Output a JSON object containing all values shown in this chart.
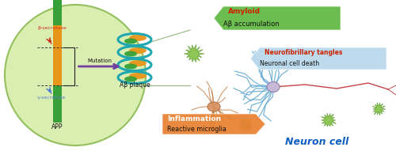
{
  "bg_color": "#ffffff",
  "ellipse_fc": "#d8edaa",
  "ellipse_ec": "#8aba50",
  "app_orange": "#e8961a",
  "app_green": "#38a038",
  "mutation_arrow": "#7040a0",
  "beta_color": "#cc3322",
  "gamma_color": "#5580cc",
  "plaque_teal": "#20a8b0",
  "plaque_green": "#38a038",
  "plaque_orange": "#e8961a",
  "amyloid_box": "#60b840",
  "amyloid_title": "Amyloid",
  "amyloid_title_color": "#cc2200",
  "amyloid_sub": "Aβ accumulation",
  "amyloid_sub_color": "#111111",
  "neuro_box": "#b8d8ec",
  "neuro_title": "Neurofibrillary tangles",
  "neuro_title_color": "#cc2200",
  "neuro_sub": "Neuronal cell death",
  "neuro_sub_color": "#111111",
  "inflam_box": "#e88030",
  "inflam_title": "Inflammation",
  "inflam_title_color": "#ffffff",
  "inflam_sub": "Reactive microglia",
  "inflam_sub_color": "#111111",
  "neuron_label": "Neuron cell",
  "neuron_label_color": "#1060c0",
  "mutation_label": "Mutation",
  "app_label": "APP",
  "beta_label": "β-secretase",
  "gamma_label": "γ-secretase",
  "abeta_label": "Aβ plaque",
  "zoom_line_color": "#90b880",
  "dendrite_blue": "#60a8d0",
  "axon_red": "#c03030",
  "cell_body_color": "#c8b8d8",
  "cell_body_edge": "#9080b0",
  "orange_mg_color": "#d49060",
  "orange_mg_edge": "#b07040",
  "green_mg_color": "#80c040",
  "green_mg_edge": "#509020"
}
